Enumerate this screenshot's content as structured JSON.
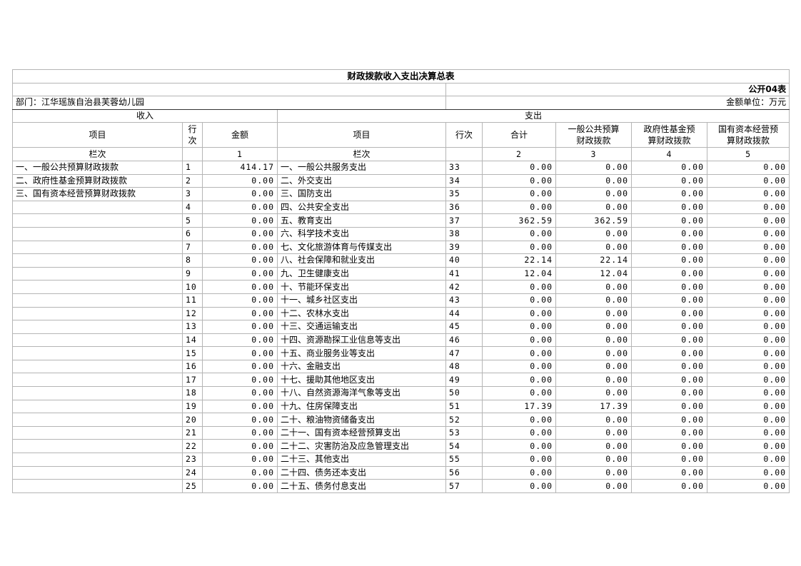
{
  "title": "财政拨款收入支出决算总表",
  "form_code": "公开04表",
  "department": "部门：江华瑶族自治县芙蓉幼儿园",
  "unit": "金额单位：万元",
  "income_header": "收入",
  "expense_header": "支出",
  "columns": {
    "item": "项目",
    "row_no_1": "行",
    "row_no_2": "次",
    "amount": "金额",
    "exp_item": "项目",
    "exp_row_no": "行次",
    "total": "合计",
    "general_1": "一般公共预算",
    "general_2": "财政拨款",
    "fund_1": "政府性基金预",
    "fund_2": "算财政拨款",
    "state_1": "国有资本经营预",
    "state_2": "算财政拨款"
  },
  "col_index": {
    "label": "栏次",
    "c1": "1",
    "exp_label": "栏次",
    "c2": "2",
    "c3": "3",
    "c4": "4",
    "c5": "5"
  },
  "rows": [
    {
      "in_item": "一、一般公共预算财政拨款",
      "in_no": "1",
      "in_amt": "414.17",
      "ex_item": "一、一般公共服务支出",
      "ex_no": "33",
      "total": "0.00",
      "gen": "0.00",
      "fund": "0.00",
      "state": "0.00"
    },
    {
      "in_item": "二、政府性基金预算财政拨款",
      "in_no": "2",
      "in_amt": "0.00",
      "ex_item": "二、外交支出",
      "ex_no": "34",
      "total": "0.00",
      "gen": "0.00",
      "fund": "0.00",
      "state": "0.00"
    },
    {
      "in_item": "三、国有资本经营预算财政拨款",
      "in_no": "3",
      "in_amt": "0.00",
      "ex_item": "三、国防支出",
      "ex_no": "35",
      "total": "0.00",
      "gen": "0.00",
      "fund": "0.00",
      "state": "0.00"
    },
    {
      "in_item": "",
      "in_no": "4",
      "in_amt": "0.00",
      "ex_item": "四、公共安全支出",
      "ex_no": "36",
      "total": "0.00",
      "gen": "0.00",
      "fund": "0.00",
      "state": "0.00"
    },
    {
      "in_item": "",
      "in_no": "5",
      "in_amt": "0.00",
      "ex_item": "五、教育支出",
      "ex_no": "37",
      "total": "362.59",
      "gen": "362.59",
      "fund": "0.00",
      "state": "0.00"
    },
    {
      "in_item": "",
      "in_no": "6",
      "in_amt": "0.00",
      "ex_item": "六、科学技术支出",
      "ex_no": "38",
      "total": "0.00",
      "gen": "0.00",
      "fund": "0.00",
      "state": "0.00"
    },
    {
      "in_item": "",
      "in_no": "7",
      "in_amt": "0.00",
      "ex_item": "七、文化旅游体育与传媒支出",
      "ex_no": "39",
      "total": "0.00",
      "gen": "0.00",
      "fund": "0.00",
      "state": "0.00"
    },
    {
      "in_item": "",
      "in_no": "8",
      "in_amt": "0.00",
      "ex_item": "八、社会保障和就业支出",
      "ex_no": "40",
      "total": "22.14",
      "gen": "22.14",
      "fund": "0.00",
      "state": "0.00"
    },
    {
      "in_item": "",
      "in_no": "9",
      "in_amt": "0.00",
      "ex_item": "九、卫生健康支出",
      "ex_no": "41",
      "total": "12.04",
      "gen": "12.04",
      "fund": "0.00",
      "state": "0.00"
    },
    {
      "in_item": "",
      "in_no": "10",
      "in_amt": "0.00",
      "ex_item": "十、节能环保支出",
      "ex_no": "42",
      "total": "0.00",
      "gen": "0.00",
      "fund": "0.00",
      "state": "0.00"
    },
    {
      "in_item": "",
      "in_no": "11",
      "in_amt": "0.00",
      "ex_item": "十一、城乡社区支出",
      "ex_no": "43",
      "total": "0.00",
      "gen": "0.00",
      "fund": "0.00",
      "state": "0.00"
    },
    {
      "in_item": "",
      "in_no": "12",
      "in_amt": "0.00",
      "ex_item": "十二、农林水支出",
      "ex_no": "44",
      "total": "0.00",
      "gen": "0.00",
      "fund": "0.00",
      "state": "0.00"
    },
    {
      "in_item": "",
      "in_no": "13",
      "in_amt": "0.00",
      "ex_item": "十三、交通运输支出",
      "ex_no": "45",
      "total": "0.00",
      "gen": "0.00",
      "fund": "0.00",
      "state": "0.00"
    },
    {
      "in_item": "",
      "in_no": "14",
      "in_amt": "0.00",
      "ex_item": "十四、资源勘探工业信息等支出",
      "ex_no": "46",
      "total": "0.00",
      "gen": "0.00",
      "fund": "0.00",
      "state": "0.00"
    },
    {
      "in_item": "",
      "in_no": "15",
      "in_amt": "0.00",
      "ex_item": "十五、商业服务业等支出",
      "ex_no": "47",
      "total": "0.00",
      "gen": "0.00",
      "fund": "0.00",
      "state": "0.00"
    },
    {
      "in_item": "",
      "in_no": "16",
      "in_amt": "0.00",
      "ex_item": "十六、金融支出",
      "ex_no": "48",
      "total": "0.00",
      "gen": "0.00",
      "fund": "0.00",
      "state": "0.00"
    },
    {
      "in_item": "",
      "in_no": "17",
      "in_amt": "0.00",
      "ex_item": "十七、援助其他地区支出",
      "ex_no": "49",
      "total": "0.00",
      "gen": "0.00",
      "fund": "0.00",
      "state": "0.00"
    },
    {
      "in_item": "",
      "in_no": "18",
      "in_amt": "0.00",
      "ex_item": "十八、自然资源海洋气象等支出",
      "ex_no": "50",
      "total": "0.00",
      "gen": "0.00",
      "fund": "0.00",
      "state": "0.00"
    },
    {
      "in_item": "",
      "in_no": "19",
      "in_amt": "0.00",
      "ex_item": "十九、住房保障支出",
      "ex_no": "51",
      "total": "17.39",
      "gen": "17.39",
      "fund": "0.00",
      "state": "0.00"
    },
    {
      "in_item": "",
      "in_no": "20",
      "in_amt": "0.00",
      "ex_item": "二十、粮油物资储备支出",
      "ex_no": "52",
      "total": "0.00",
      "gen": "0.00",
      "fund": "0.00",
      "state": "0.00"
    },
    {
      "in_item": "",
      "in_no": "21",
      "in_amt": "0.00",
      "ex_item": "二十一、国有资本经营预算支出",
      "ex_no": "53",
      "total": "0.00",
      "gen": "0.00",
      "fund": "0.00",
      "state": "0.00"
    },
    {
      "in_item": "",
      "in_no": "22",
      "in_amt": "0.00",
      "ex_item": "二十二、灾害防治及应急管理支出",
      "ex_no": "54",
      "total": "0.00",
      "gen": "0.00",
      "fund": "0.00",
      "state": "0.00"
    },
    {
      "in_item": "",
      "in_no": "23",
      "in_amt": "0.00",
      "ex_item": "二十三、其他支出",
      "ex_no": "55",
      "total": "0.00",
      "gen": "0.00",
      "fund": "0.00",
      "state": "0.00"
    },
    {
      "in_item": "",
      "in_no": "24",
      "in_amt": "0.00",
      "ex_item": "二十四、债务还本支出",
      "ex_no": "56",
      "total": "0.00",
      "gen": "0.00",
      "fund": "0.00",
      "state": "0.00"
    },
    {
      "in_item": "",
      "in_no": "25",
      "in_amt": "0.00",
      "ex_item": "二十五、债务付息支出",
      "ex_no": "57",
      "total": "0.00",
      "gen": "0.00",
      "fund": "0.00",
      "state": "0.00"
    }
  ]
}
